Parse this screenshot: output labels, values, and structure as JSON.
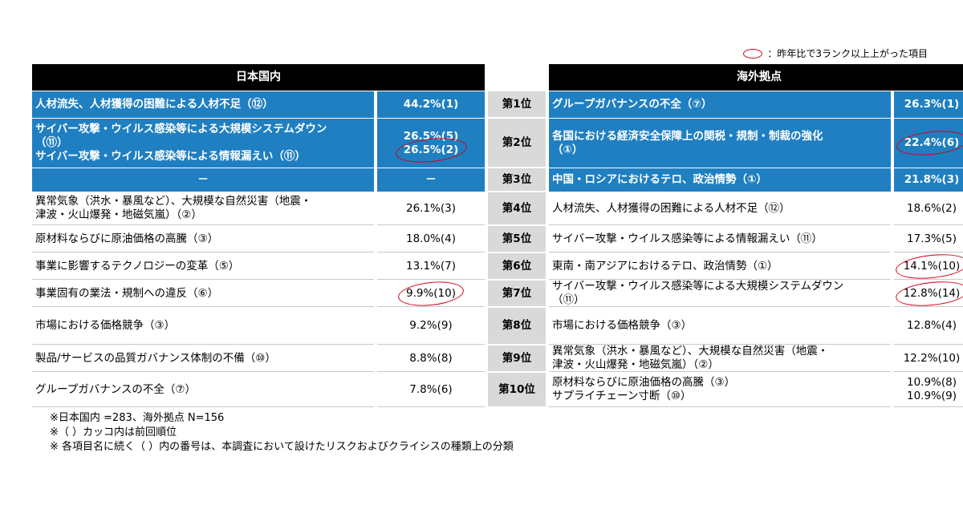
{
  "legend": {
    "text": "：昨年比で3ランク以上上がった項目",
    "mark_color": "#d0021b"
  },
  "headers": {
    "domestic": "日本国内",
    "overseas": "海外拠点"
  },
  "colors": {
    "header_bg": "#000000",
    "highlight_bg": "#1f7fc1",
    "rank_bg": "#d9d9d9",
    "circle": "#d0021b"
  },
  "rows": [
    {
      "rank": "第1位",
      "dom_lines": [
        "人材流失、人材獲得の困難による人材不足（⑫）"
      ],
      "dom_vals": [
        "44.2%(1)"
      ],
      "ovs_lines": [
        "グループガバナンスの不全（⑦）"
      ],
      "ovs_vals": [
        "26.3%(1)"
      ]
    },
    {
      "rank": "第2位",
      "dom_lines": [
        "サイバー攻撃・ウイルス感染等による大規模システムダウン",
        "（⑪）",
        "サイバー攻撃・ウイルス感染等による情報漏えい（⑪）"
      ],
      "dom_vals": [
        "26.5%(5)",
        "26.5%(2)"
      ],
      "ovs_lines": [
        "各国における経済安全保障上の関税・規制・制裁の強化",
        "（①）"
      ],
      "ovs_vals": [
        "22.4%(6)"
      ]
    },
    {
      "rank": "第3位",
      "dom_lines": [
        "－"
      ],
      "dom_vals": [
        "－"
      ],
      "ovs_lines": [
        "中国・ロシアにおけるテロ、政治情勢（①）"
      ],
      "ovs_vals": [
        "21.8%(3)"
      ]
    },
    {
      "rank": "第4位",
      "dom_lines": [
        "異常気象（洪水・暴風など）、大規模な自然災害（地震・",
        "津波・火山爆発・地磁気嵐）（②）"
      ],
      "dom_vals": [
        "26.1%(3)"
      ],
      "ovs_lines": [
        "人材流失、人材獲得の困難による人材不足（⑫）"
      ],
      "ovs_vals": [
        "18.6%(2)"
      ]
    },
    {
      "rank": "第5位",
      "dom_lines": [
        "原材料ならびに原油価格の高騰（③）"
      ],
      "dom_vals": [
        "18.0%(4)"
      ],
      "ovs_lines": [
        "サイバー攻撃・ウイルス感染等による情報漏えい（⑪）"
      ],
      "ovs_vals": [
        "17.3%(5)"
      ]
    },
    {
      "rank": "第6位",
      "dom_lines": [
        "事業に影響するテクノロジーの変革（⑤）"
      ],
      "dom_vals": [
        "13.1%(7)"
      ],
      "ovs_lines": [
        "東南・南アジアにおけるテロ、政治情勢（①）"
      ],
      "ovs_vals": [
        "14.1%(10)"
      ]
    },
    {
      "rank": "第7位",
      "dom_lines": [
        "事業固有の業法・規制への違反（⑥）"
      ],
      "dom_vals": [
        "9.9%(10)"
      ],
      "ovs_lines": [
        "サイバー攻撃・ウイルス感染等による大規模システムダウン",
        "（⑪）"
      ],
      "ovs_vals": [
        "12.8%(14)"
      ]
    },
    {
      "rank": "第8位",
      "dom_lines": [
        "市場における価格競争（③）"
      ],
      "dom_vals": [
        "9.2%(9)"
      ],
      "ovs_lines": [
        "市場における価格競争（③）"
      ],
      "ovs_vals": [
        "12.8%(4)"
      ]
    },
    {
      "rank": "第9位",
      "dom_lines": [
        "製品/サービスの品質ガバナンス体制の不備（⑩）"
      ],
      "dom_vals": [
        "8.8%(8)"
      ],
      "ovs_lines": [
        "異常気象（洪水・暴風など）、大規模な自然災害（地震・",
        "津波・火山爆発・地磁気嵐）（②）"
      ],
      "ovs_vals": [
        "12.2%(10)"
      ]
    },
    {
      "rank": "第10位",
      "dom_lines": [
        "グループガバナンスの不全（⑦）"
      ],
      "dom_vals": [
        "7.8%(6)"
      ],
      "ovs_lines": [
        "原材料ならびに原油価格の高騰（③）",
        "サプライチェーン寸断（⑩）"
      ],
      "ovs_vals": [
        "10.9%(8)",
        "10.9%(9)"
      ]
    }
  ],
  "notes": [
    "※日本国内 =283、海外拠点 N=156",
    "※（ ）カッコ内は前回順位",
    "※ 各項目名に続く（ ）内の番号は、本調査において設けたリスクおよびクライシスの種類上の分類"
  ]
}
